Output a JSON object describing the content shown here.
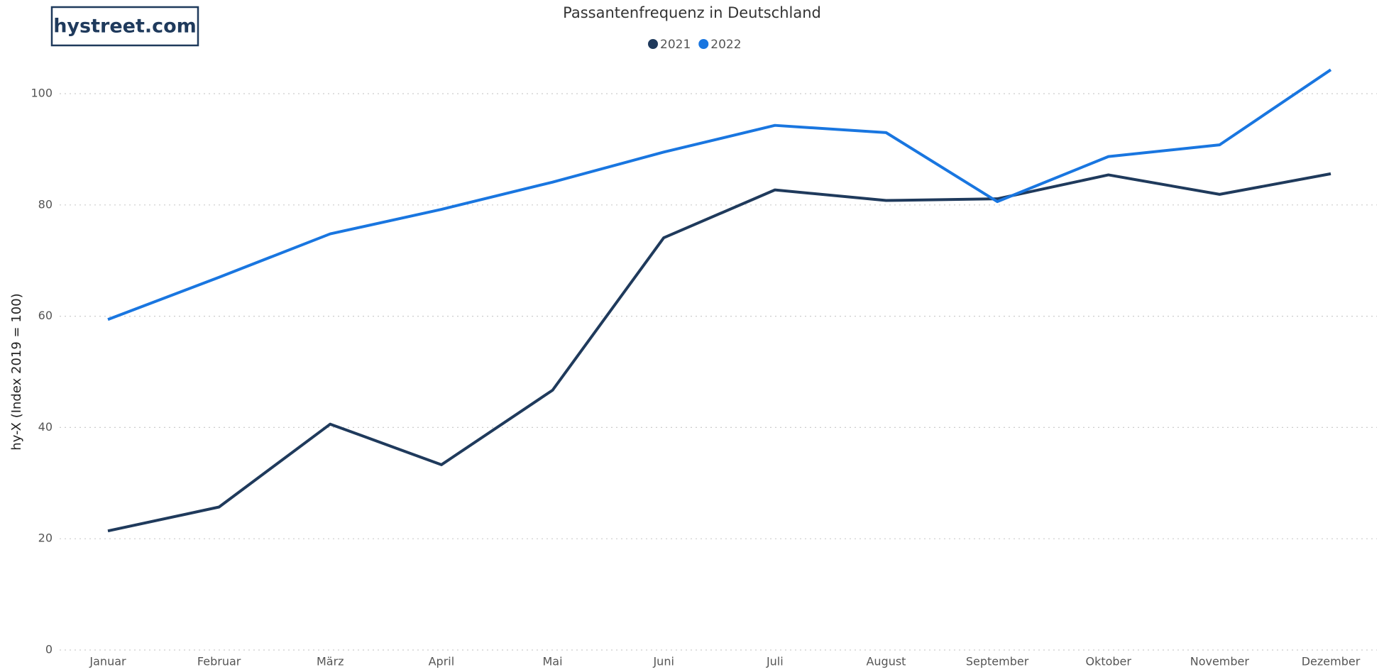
{
  "logo": "hystreet.com",
  "chart_data": {
    "type": "line",
    "title": "Passantenfrequenz in Deutschland",
    "y_label": "hy-X (Index 2019 = 100)",
    "categories": [
      "Januar",
      "Februar",
      "März",
      "April",
      "Mai",
      "Juni",
      "Juli",
      "August",
      "September",
      "Oktober",
      "November",
      "Dezember"
    ],
    "series": [
      {
        "name": "2021",
        "color": "#1f3a5c",
        "values": [
          21.4,
          25.7,
          40.6,
          33.3,
          46.7,
          74.1,
          82.7,
          80.8,
          81.1,
          85.4,
          81.9,
          85.6
        ]
      },
      {
        "name": "2022",
        "color": "#1976e0",
        "values": [
          59.4,
          67.0,
          74.8,
          79.2,
          84.1,
          89.5,
          94.3,
          93.0,
          80.6,
          88.7,
          90.8,
          104.3
        ]
      }
    ],
    "ylim": [
      0,
      100
    ],
    "yticks": [
      0,
      20,
      40,
      60,
      80,
      100
    ],
    "grid": true,
    "legend": "top"
  }
}
